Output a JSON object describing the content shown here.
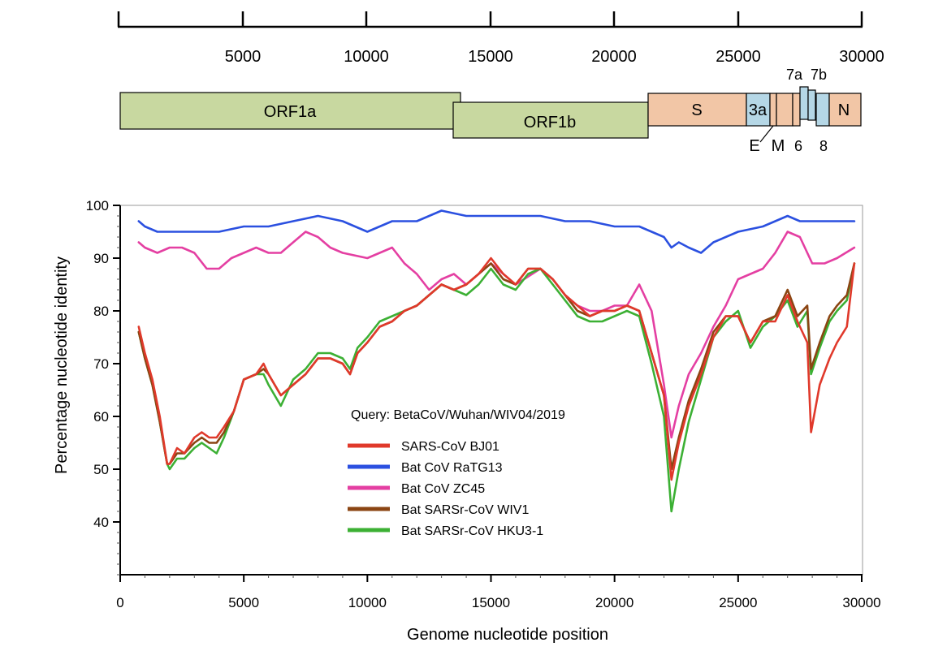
{
  "genome_map": {
    "ruler": {
      "ticks": [
        "5000",
        "10000",
        "15000",
        "20000",
        "25000",
        "30000"
      ]
    },
    "genes": [
      {
        "label": "ORF1a",
        "color": "#c8d8a0"
      },
      {
        "label": "ORF1b",
        "color": "#c8d8a0"
      },
      {
        "label": "S",
        "color": "#f2c6a6"
      },
      {
        "label": "3a",
        "color": "#b5d7e6"
      },
      {
        "label": "E",
        "color": "#f2c6a6"
      },
      {
        "label": "M",
        "color": "#f2c6a6"
      },
      {
        "label": "6",
        "color": "#f2c6a6"
      },
      {
        "label": "7a",
        "color": "#b5d7e6"
      },
      {
        "label": "7b",
        "color": "#b5d7e6"
      },
      {
        "label": "8",
        "color": "#b5d7e6"
      },
      {
        "label": "N",
        "color": "#f2c6a6"
      }
    ]
  },
  "chart_data": {
    "type": "line",
    "xlabel": "Genome nucleotide position",
    "ylabel": "Percentage nucleotide identity",
    "xlim": [
      0,
      30000
    ],
    "ylim": [
      30,
      100
    ],
    "xticks": [
      "0",
      "5000",
      "10000",
      "15000",
      "20000",
      "25000",
      "30000"
    ],
    "yticks": [
      "40",
      "50",
      "60",
      "70",
      "80",
      "90",
      "100"
    ],
    "grid": false,
    "legend_title": "Query: BetaCoV/Wuhan/WIV04/2019",
    "legend_position": "center-left",
    "series": [
      {
        "name": "SARS-CoV BJ01",
        "color": "#e0392b",
        "x": [
          750,
          1000,
          1300,
          1600,
          1900,
          2000,
          2300,
          2600,
          3000,
          3300,
          3600,
          3900,
          4200,
          4600,
          5000,
          5500,
          5800,
          6000,
          6500,
          7000,
          7500,
          8000,
          8500,
          9000,
          9300,
          9600,
          10000,
          10500,
          11000,
          11500,
          12000,
          12500,
          13000,
          13500,
          14000,
          14500,
          15000,
          15500,
          16000,
          16500,
          17000,
          17500,
          18000,
          18500,
          19000,
          19500,
          20000,
          20500,
          21000,
          21500,
          22000,
          22300,
          22600,
          23000,
          23500,
          24000,
          24500,
          25000,
          25500,
          26000,
          26500,
          27000,
          27400,
          27800,
          27950,
          28300,
          28700,
          29000,
          29400,
          29700
        ],
        "y": [
          77,
          72,
          67,
          60,
          51,
          51,
          54,
          53,
          56,
          57,
          56,
          56,
          58,
          61,
          67,
          68,
          70,
          68,
          64,
          66,
          68,
          71,
          71,
          70,
          68,
          72,
          74,
          77,
          78,
          80,
          81,
          83,
          85,
          84,
          85,
          87,
          90,
          87,
          85,
          88,
          88,
          86,
          83,
          81,
          79,
          80,
          80,
          81,
          80,
          72,
          64,
          48,
          55,
          62,
          68,
          75,
          79,
          79,
          74,
          78,
          78,
          83,
          78,
          74,
          57,
          66,
          71,
          74,
          77,
          89
        ]
      },
      {
        "name": "Bat CoV RaTG13",
        "color": "#2b50e0",
        "x": [
          750,
          1000,
          1500,
          2000,
          3000,
          4000,
          5000,
          6000,
          7000,
          8000,
          9000,
          10000,
          11000,
          12000,
          13000,
          14000,
          15000,
          16000,
          17000,
          18000,
          19000,
          20000,
          21000,
          22000,
          22300,
          22600,
          23000,
          23500,
          24000,
          25000,
          26000,
          27000,
          27500,
          28000,
          29000,
          29700
        ],
        "y": [
          97,
          96,
          95,
          95,
          95,
          95,
          96,
          96,
          97,
          98,
          97,
          95,
          97,
          97,
          99,
          98,
          98,
          98,
          98,
          97,
          97,
          96,
          96,
          94,
          92,
          93,
          92,
          91,
          93,
          95,
          96,
          98,
          97,
          97,
          97,
          97
        ]
      },
      {
        "name": "Bat CoV ZC45",
        "color": "#e43fa2",
        "x": [
          750,
          1000,
          1500,
          2000,
          2500,
          3000,
          3500,
          4000,
          4500,
          5000,
          5500,
          6000,
          6500,
          7000,
          7500,
          8000,
          8500,
          9000,
          10000,
          11000,
          11500,
          12000,
          12500,
          13000,
          13500,
          14000,
          15000,
          16000,
          17000,
          17500,
          18000,
          18500,
          19000,
          19500,
          20000,
          20500,
          21000,
          21500,
          22000,
          22300,
          22600,
          23000,
          23500,
          24000,
          24500,
          25000,
          25500,
          26000,
          26500,
          27000,
          27500,
          28000,
          28500,
          29000,
          29700
        ],
        "y": [
          93,
          92,
          91,
          92,
          92,
          91,
          88,
          88,
          90,
          91,
          92,
          91,
          91,
          93,
          95,
          94,
          92,
          91,
          90,
          92,
          89,
          87,
          84,
          86,
          87,
          85,
          89,
          85,
          88,
          86,
          83,
          81,
          80,
          80,
          81,
          81,
          85,
          80,
          66,
          56,
          62,
          68,
          72,
          77,
          81,
          86,
          87,
          88,
          91,
          95,
          94,
          89,
          89,
          90,
          92
        ]
      },
      {
        "name": "Bat SARSr-CoV WIV1",
        "color": "#8b4513",
        "x": [
          750,
          1000,
          1300,
          1600,
          1900,
          2000,
          2300,
          2600,
          3000,
          3300,
          3600,
          3900,
          4200,
          4600,
          5000,
          5500,
          5800,
          6000,
          6500,
          7000,
          7500,
          8000,
          8500,
          9000,
          9300,
          9600,
          10000,
          10500,
          11000,
          11500,
          12000,
          12500,
          13000,
          13500,
          14000,
          14500,
          15000,
          15500,
          16000,
          16500,
          17000,
          17500,
          18000,
          18500,
          19000,
          19500,
          20000,
          20500,
          21000,
          21500,
          22000,
          22300,
          22600,
          23000,
          23500,
          24000,
          24500,
          25000,
          25500,
          26000,
          26500,
          27000,
          27400,
          27800,
          27950,
          28300,
          28700,
          29000,
          29400,
          29700
        ],
        "y": [
          76,
          71,
          66,
          59,
          51,
          51,
          53,
          53,
          55,
          56,
          55,
          55,
          57,
          61,
          67,
          68,
          69,
          68,
          64,
          66,
          68,
          71,
          71,
          70,
          68,
          72,
          74,
          77,
          78,
          80,
          81,
          83,
          85,
          84,
          85,
          87,
          89,
          86,
          85,
          88,
          88,
          86,
          83,
          80,
          79,
          80,
          80,
          81,
          80,
          72,
          64,
          50,
          56,
          63,
          69,
          76,
          79,
          79,
          74,
          78,
          79,
          84,
          79,
          81,
          69,
          74,
          79,
          81,
          83,
          89
        ]
      },
      {
        "name": "Bat SARSr-CoV HKU3-1",
        "color": "#3cb034",
        "x": [
          750,
          1000,
          1300,
          1600,
          1900,
          2000,
          2300,
          2600,
          3000,
          3300,
          3600,
          3900,
          4200,
          4600,
          5000,
          5500,
          5800,
          6000,
          6500,
          7000,
          7500,
          8000,
          8500,
          9000,
          9300,
          9600,
          10000,
          10500,
          11000,
          11500,
          12000,
          12500,
          13000,
          13500,
          14000,
          14500,
          15000,
          15500,
          16000,
          16500,
          17000,
          17500,
          18000,
          18500,
          19000,
          19500,
          20000,
          20500,
          21000,
          21500,
          22000,
          22300,
          22600,
          23000,
          23500,
          24000,
          24500,
          25000,
          25500,
          26000,
          26500,
          27000,
          27400,
          27800,
          27950,
          28300,
          28700,
          29000,
          29400,
          29700
        ],
        "y": [
          76,
          71,
          66,
          59,
          51,
          50,
          52,
          52,
          54,
          55,
          54,
          53,
          56,
          61,
          67,
          68,
          68,
          66,
          62,
          67,
          69,
          72,
          72,
          71,
          69,
          73,
          75,
          78,
          79,
          80,
          81,
          83,
          85,
          84,
          83,
          85,
          88,
          85,
          84,
          87,
          88,
          85,
          82,
          79,
          78,
          78,
          79,
          80,
          79,
          70,
          60,
          42,
          50,
          59,
          67,
          75,
          78,
          80,
          73,
          77,
          79,
          82,
          77,
          80,
          68,
          73,
          78,
          80,
          82,
          89
        ]
      }
    ]
  }
}
